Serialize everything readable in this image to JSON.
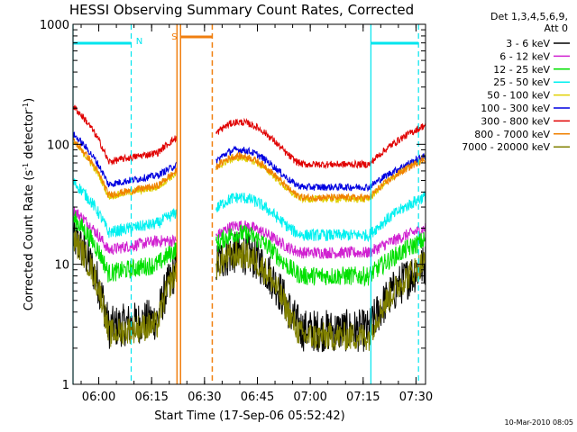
{
  "chart_data": {
    "type": "line",
    "title": "HESSI Observing Summary Count Rates, Corrected",
    "xlabel": "Start Time (17-Sep-06 05:52:42)",
    "ylabel": "Corrected Count Rate (s",
    "ylabel_sup1": "-1",
    "ylabel_mid": " detector",
    "ylabel_sup2": "-1",
    "ylabel_end": ")",
    "yscale": "log",
    "ylim": [
      1,
      1000
    ],
    "xlim_minutes": [
      0,
      100
    ],
    "x_ticks": [
      "06:00",
      "06:15",
      "06:30",
      "06:45",
      "07:00",
      "07:15",
      "07:30"
    ],
    "x_tick_minutes": [
      7.3,
      22.3,
      37.3,
      52.3,
      67.3,
      82.3,
      97.3
    ],
    "y_ticks": [
      "1",
      "10",
      "100",
      "1000"
    ],
    "y_tick_values": [
      1,
      10,
      100,
      1000
    ],
    "legend_header": [
      "Det 1,3,4,5,6,9,",
      "Att 0"
    ],
    "legend_placement": "right",
    "footer": "10-Mar-2010 08:05",
    "gap_minutes": [
      29.5,
      40.5
    ],
    "markers": [
      {
        "label": "N",
        "color": "#00e5ee"
      },
      {
        "label": "S",
        "color": "#f07f10"
      }
    ],
    "night_bars": [
      [
        0,
        16.5
      ],
      [
        84.5,
        98
      ]
    ],
    "saa_bar": [
      30.5,
      39.5
    ],
    "cyan_lines": [
      {
        "x": 0,
        "dash": false
      },
      {
        "x": 16.5,
        "dash": true
      },
      {
        "x": 84.5,
        "dash": false
      },
      {
        "x": 98,
        "dash": true
      }
    ],
    "orange_lines": [
      {
        "x": 29.5,
        "dash": false
      },
      {
        "x": 30.5,
        "dash": false
      },
      {
        "x": 39.5,
        "dash": true
      }
    ],
    "series": [
      {
        "name": "3 - 6 keV",
        "color": "#000000",
        "low": 2.8,
        "mid": 12.5,
        "end": 10.0,
        "noise": 0.18
      },
      {
        "name": "6 - 12 keV",
        "color": "#d020d0",
        "low": 12.5,
        "mid": 21,
        "end": 20.0,
        "noise": 0.05
      },
      {
        "name": "12 - 25 keV",
        "color": "#00e000",
        "low": 8.0,
        "mid": 18,
        "end": 16.0,
        "noise": 0.08
      },
      {
        "name": "25 - 50 keV",
        "color": "#00f0f0",
        "low": 17.5,
        "mid": 36,
        "end": 37.0,
        "noise": 0.05
      },
      {
        "name": "50 - 100 keV",
        "color": "#e0d000",
        "low": 35,
        "mid": 77,
        "end": 78.0,
        "noise": 0.03
      },
      {
        "name": "100 - 300 keV",
        "color": "#0000e0",
        "low": 44,
        "mid": 90,
        "end": 80.0,
        "noise": 0.03
      },
      {
        "name": "300 - 800 keV",
        "color": "#e00000",
        "low": 68,
        "mid": 153,
        "end": 145.0,
        "noise": 0.03
      },
      {
        "name": "800 - 7000 keV",
        "color": "#f08000",
        "low": 36,
        "mid": 80,
        "end": 76.0,
        "noise": 0.03
      },
      {
        "name": "7000 - 20000 keV",
        "color": "#808000",
        "low": 2.5,
        "mid": 12,
        "end": 10.5,
        "noise": 0.12
      }
    ]
  }
}
